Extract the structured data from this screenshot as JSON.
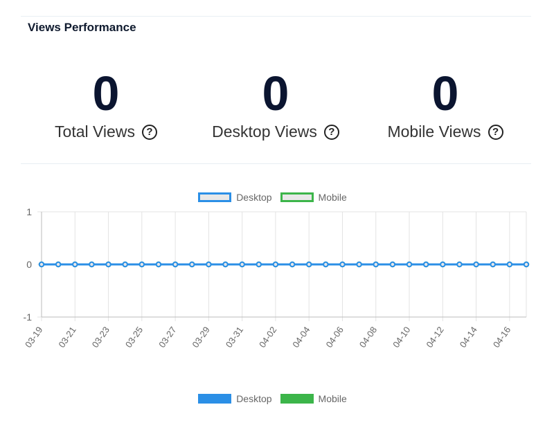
{
  "panel": {
    "title": "Views Performance"
  },
  "stats": [
    {
      "value": "0",
      "label": "Total Views"
    },
    {
      "value": "0",
      "label": "Desktop Views"
    },
    {
      "value": "0",
      "label": "Mobile Views"
    }
  ],
  "help_glyph": "?",
  "legend": [
    "Desktop",
    "Mobile"
  ],
  "colors": {
    "desktop": "#2b8fe6",
    "mobile": "#3cb54a",
    "grid": "#e3e3e3",
    "axis": "#bbbbbb",
    "tick_text": "#666666"
  },
  "chart_data": {
    "type": "line",
    "x": [
      "03-19",
      "03-20",
      "03-21",
      "03-22",
      "03-23",
      "03-24",
      "03-25",
      "03-26",
      "03-27",
      "03-28",
      "03-29",
      "03-30",
      "03-31",
      "04-01",
      "04-02",
      "04-03",
      "04-04",
      "04-05",
      "04-06",
      "04-07",
      "04-08",
      "04-09",
      "04-10",
      "04-11",
      "04-12",
      "04-13",
      "04-14",
      "04-15",
      "04-16",
      "04-17"
    ],
    "x_tick_labels": [
      "03-19",
      "03-21",
      "03-23",
      "03-25",
      "03-27",
      "03-29",
      "03-31",
      "04-02",
      "04-04",
      "04-06",
      "04-08",
      "04-10",
      "04-12",
      "04-14",
      "04-16"
    ],
    "series": [
      {
        "name": "Desktop",
        "values": [
          0,
          0,
          0,
          0,
          0,
          0,
          0,
          0,
          0,
          0,
          0,
          0,
          0,
          0,
          0,
          0,
          0,
          0,
          0,
          0,
          0,
          0,
          0,
          0,
          0,
          0,
          0,
          0,
          0,
          0
        ]
      },
      {
        "name": "Mobile",
        "values": [
          0,
          0,
          0,
          0,
          0,
          0,
          0,
          0,
          0,
          0,
          0,
          0,
          0,
          0,
          0,
          0,
          0,
          0,
          0,
          0,
          0,
          0,
          0,
          0,
          0,
          0,
          0,
          0,
          0,
          0
        ]
      }
    ],
    "y_ticks": [
      1,
      0,
      -1
    ],
    "ylim": [
      -1,
      1
    ],
    "grid": true,
    "legend_position": "top and bottom"
  }
}
